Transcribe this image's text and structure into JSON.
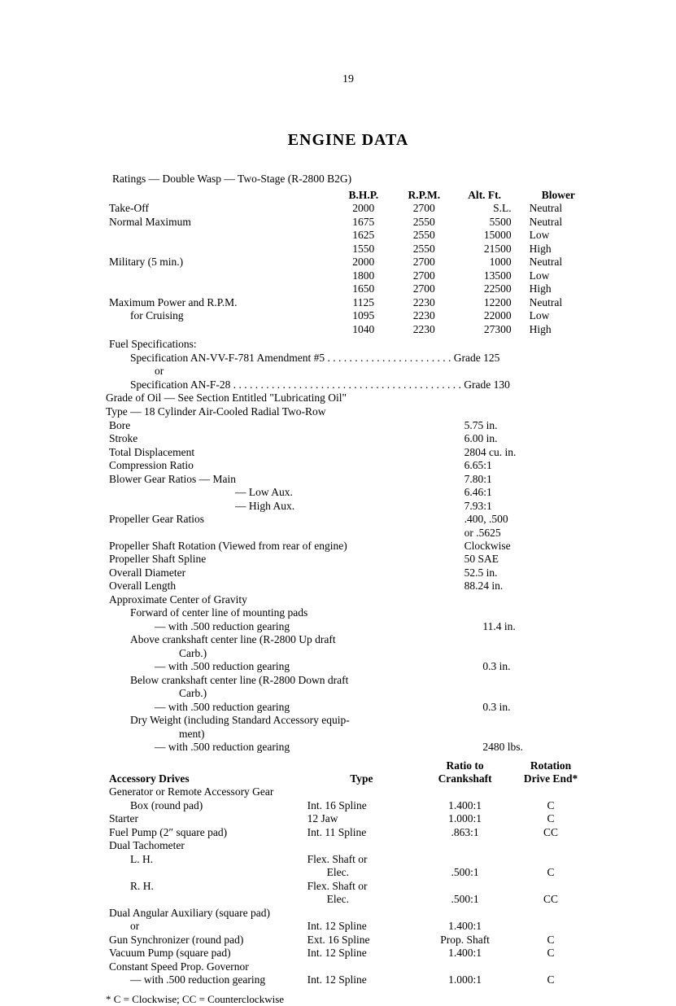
{
  "page_number": "19",
  "title": "ENGINE  DATA",
  "ratings_caption": "Ratings — Double Wasp — Two-Stage (R-2800 B2G)",
  "ratings_headers": {
    "bhp": "B.H.P.",
    "rpm": "R.P.M.",
    "alt": "Alt. Ft.",
    "blower": "Blower"
  },
  "ratings_rows": [
    {
      "label": "Take-Off",
      "bhp": "2000",
      "rpm": "2700",
      "alt": "S.L.",
      "blower": "Neutral"
    },
    {
      "label": "Normal Maximum",
      "bhp": "1675",
      "rpm": "2550",
      "alt": "5500",
      "blower": "Neutral"
    },
    {
      "label": "",
      "bhp": "1625",
      "rpm": "2550",
      "alt": "15000",
      "blower": "Low"
    },
    {
      "label": "",
      "bhp": "1550",
      "rpm": "2550",
      "alt": "21500",
      "blower": "High"
    },
    {
      "label": "Military (5 min.)",
      "bhp": "2000",
      "rpm": "2700",
      "alt": "1000",
      "blower": "Neutral"
    },
    {
      "label": "",
      "bhp": "1800",
      "rpm": "2700",
      "alt": "13500",
      "blower": "Low"
    },
    {
      "label": "",
      "bhp": "1650",
      "rpm": "2700",
      "alt": "22500",
      "blower": "High"
    },
    {
      "label": "Maximum Power and R.P.M.",
      "bhp": "1125",
      "rpm": "2230",
      "alt": "12200",
      "blower": "Neutral"
    },
    {
      "label": "for Cruising",
      "indent": 1,
      "bhp": "1095",
      "rpm": "2230",
      "alt": "22000",
      "blower": "Low"
    },
    {
      "label": "",
      "bhp": "1040",
      "rpm": "2230",
      "alt": "27300",
      "blower": "High"
    }
  ],
  "fuel_spec_label": "Fuel Specifications:",
  "fuel_spec_1_label": "Specification AN-VV-F-781 Amendment #5",
  "fuel_spec_1_grade": "Grade 125",
  "fuel_spec_or": "or",
  "fuel_spec_2_label": "Specification AN-F-28",
  "fuel_spec_2_grade": "Grade 130",
  "oil_line": "Grade of Oil — See Section Entitled \"Lubricating Oil\"",
  "type_line": "Type — 18 Cylinder Air-Cooled Radial Two-Row",
  "specs": [
    {
      "label": "Bore",
      "value": "5.75 in."
    },
    {
      "label": "Stroke",
      "value": "6.00 in."
    },
    {
      "label": "Total Displacement",
      "value": "2804 cu. in."
    },
    {
      "label": "Compression Ratio",
      "value": "6.65:1"
    },
    {
      "label": "Blower Gear Ratios — Main",
      "value": "7.80:1"
    },
    {
      "label": "— Low Aux.",
      "indent": "gearsub",
      "value": "6.46:1"
    },
    {
      "label": "— High Aux.",
      "indent": "gearsub",
      "value": "7.93:1"
    },
    {
      "label": "Propeller Gear Ratios",
      "value": ".400, .500"
    },
    {
      "label": "",
      "value": "or .5625"
    },
    {
      "label": "Propeller Shaft Rotation (Viewed from rear of engine)",
      "value": "Clockwise"
    },
    {
      "label": "Propeller Shaft Spline",
      "value": "50 SAE"
    },
    {
      "label": "Overall Diameter",
      "value": "52.5 in."
    },
    {
      "label": "Overall Length",
      "value": "88.24 in."
    },
    {
      "label": "Approximate Center of Gravity",
      "value": ""
    }
  ],
  "cog_lines": [
    {
      "t": "Forward of center line of mounting pads",
      "indent": 1
    },
    {
      "t": "— with .500 reduction gearing",
      "indent": 2,
      "value": "11.4 in."
    },
    {
      "t": "Above crankshaft center line (R-2800 Up draft",
      "indent": 1
    },
    {
      "t": "Carb.)",
      "indent": 3
    },
    {
      "t": "— with .500 reduction gearing",
      "indent": 2,
      "value": "0.3 in."
    },
    {
      "t": "Below crankshaft center line (R-2800 Down draft",
      "indent": 1
    },
    {
      "t": "Carb.)",
      "indent": 3
    },
    {
      "t": "— with .500 reduction gearing",
      "indent": 2,
      "value": "0.3 in."
    },
    {
      "t": "Dry Weight (including Standard Accessory equip-",
      "indent": 1
    },
    {
      "t": "ment)",
      "indent": 3
    },
    {
      "t": "— with .500 reduction gearing",
      "indent": 2,
      "value": "2480 lbs."
    }
  ],
  "acc_headers": {
    "drives": "Accessory Drives",
    "type": "Type",
    "ratio1": "Ratio to",
    "ratio2": "Crankshaft",
    "rot1": "Rotation",
    "rot2": "Drive End*"
  },
  "acc_rows": [
    {
      "label": "Generator or Remote Accessory Gear"
    },
    {
      "label": "Box (round pad)",
      "indent": 1,
      "type": "Int. 16 Spline",
      "ratio": "1.400:1",
      "rot": "C"
    },
    {
      "label": "Starter",
      "type": "12 Jaw",
      "ratio": "1.000:1",
      "rot": "C"
    },
    {
      "label": "Fuel Pump (2″ square pad)",
      "type": "Int. 11 Spline",
      "ratio": ".863:1",
      "rot": "CC"
    },
    {
      "label": "Dual Tachometer"
    },
    {
      "label": "L. H.",
      "indent": 1,
      "type": "Flex. Shaft or"
    },
    {
      "label": "",
      "type": "Elec.",
      "typeindent": 1,
      "ratio": ".500:1",
      "rot": "C"
    },
    {
      "label": "R. H.",
      "indent": 1,
      "type": "Flex. Shaft or"
    },
    {
      "label": "",
      "type": "Elec.",
      "typeindent": 1,
      "ratio": ".500:1",
      "rot": "CC"
    },
    {
      "label": "Dual Angular Auxiliary (square pad)"
    },
    {
      "label": "or",
      "indent": 1,
      "type": "Int. 12 Spline",
      "ratio": "1.400:1",
      "rot": ""
    },
    {
      "label": "Gun Synchronizer (round pad)",
      "type": "Ext. 16 Spline",
      "ratio": "Prop. Shaft",
      "rot": "C"
    },
    {
      "label": "Vacuum Pump (square pad)",
      "type": "Int. 12 Spline",
      "ratio": "1.400:1",
      "rot": "C"
    },
    {
      "label": "Constant Speed Prop. Governor"
    },
    {
      "label": "— with .500 reduction gearing",
      "indent": 1,
      "type": "Int. 12 Spline",
      "ratio": "1.000:1",
      "rot": "C"
    }
  ],
  "footnote": "* C = Clockwise; CC = Counterclockwise"
}
